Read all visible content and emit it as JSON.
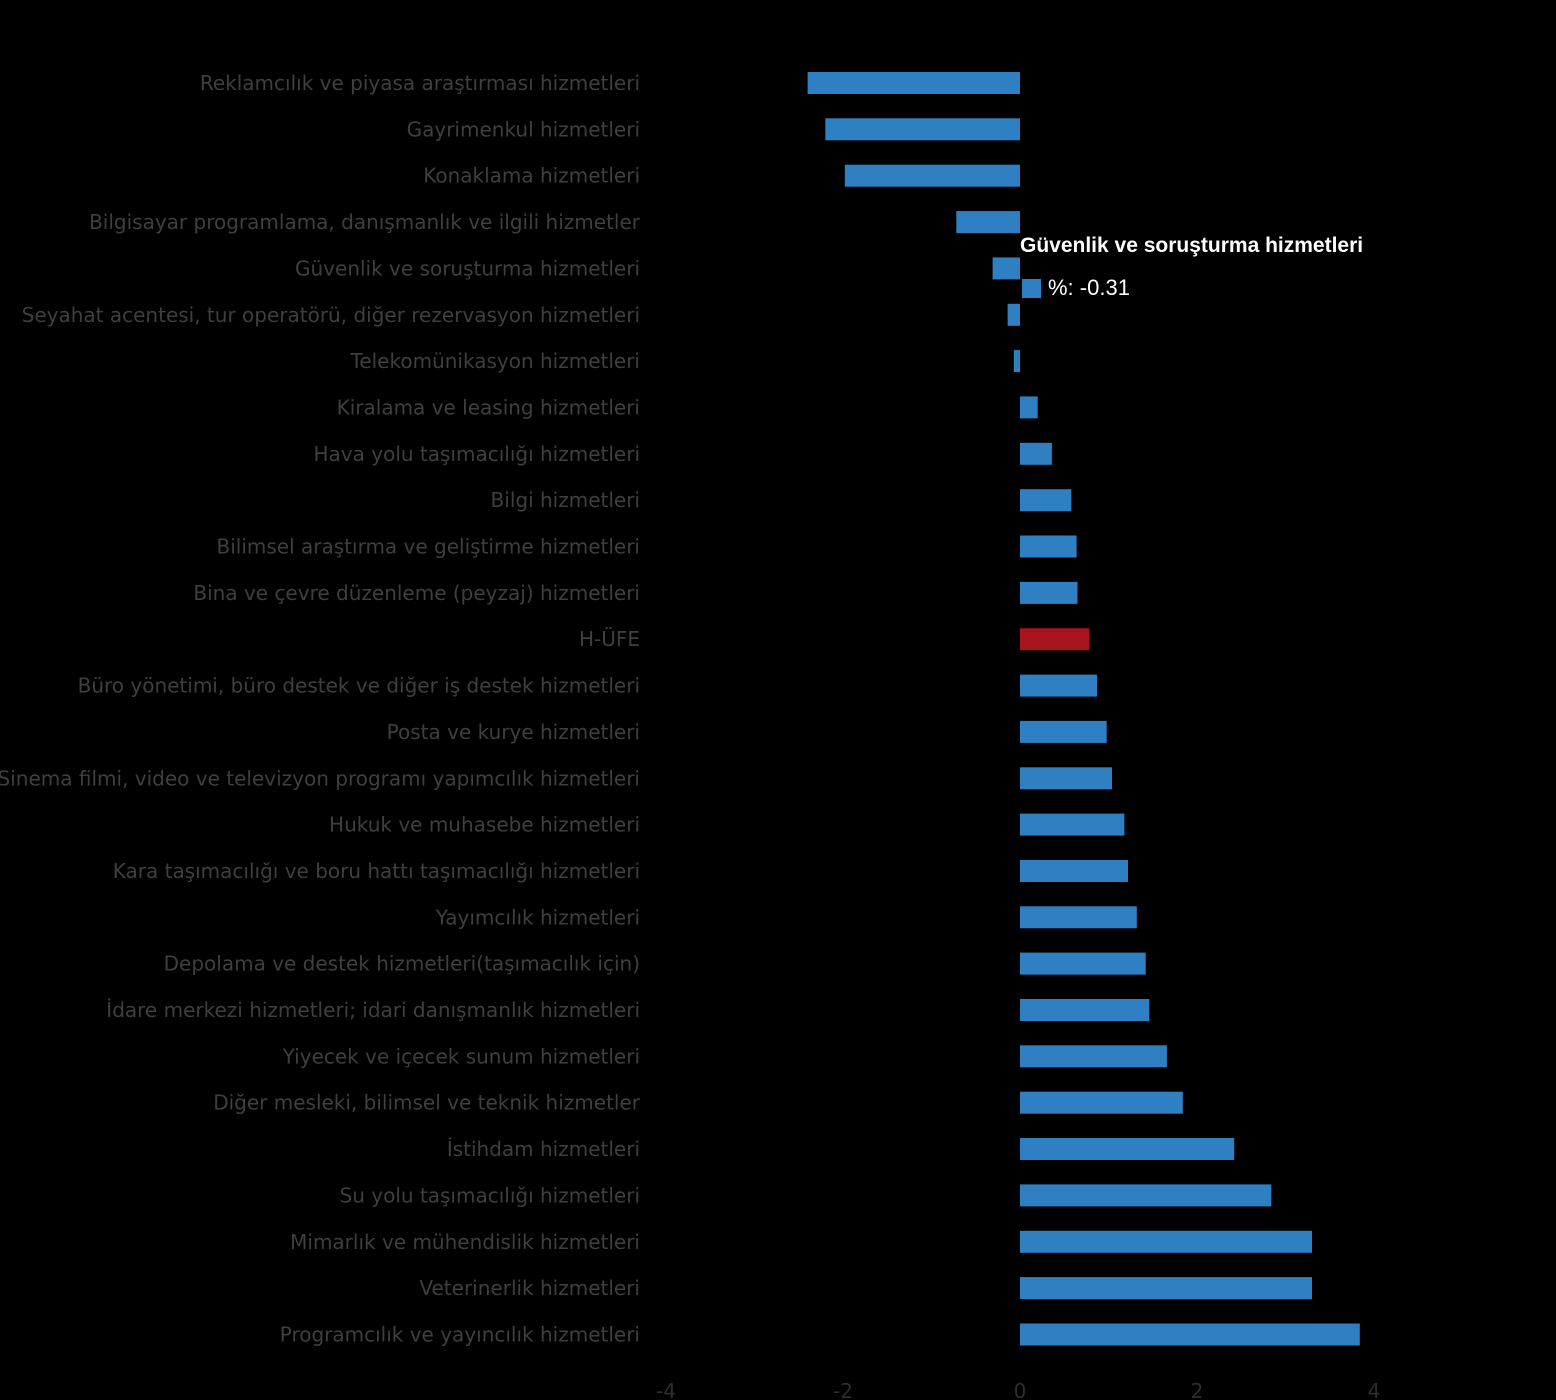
{
  "colors": {
    "background": "#000000",
    "bar": "#2f7fc3",
    "highlight": "#a8141b",
    "label": "#3f3f3f",
    "tick": "#2e2e2e",
    "tooltip_text": "#ffffff"
  },
  "tooltip": {
    "title": "Güvenlik ve soruşturma hizmetleri",
    "value_text": "%: -0.31"
  },
  "chart_data": {
    "type": "bar",
    "orientation": "horizontal",
    "categories": [
      "Reklamcılık ve piyasa araştırması hizmetleri",
      "Gayrimenkul hizmetleri",
      "Konaklama hizmetleri",
      "Bilgisayar programlama, danışmanlık ve ilgili hizmetler",
      "Güvenlik ve soruşturma hizmetleri",
      "Seyahat acentesi, tur operatörü, diğer rezervasyon hizmetleri",
      "Telekomünikasyon hizmetleri",
      "Kiralama ve leasing hizmetleri",
      "Hava yolu taşımacılığı hizmetleri",
      "Bilgi hizmetleri",
      "Bilimsel araştırma ve geliştirme hizmetleri",
      "Bina ve çevre düzenleme (peyzaj) hizmetleri",
      "H-ÜFE",
      "Büro yönetimi, büro destek ve diğer iş destek hizmetleri",
      "Posta ve kurye hizmetleri",
      "Sinema filmi, video ve televizyon programı yapımcılık hizmetleri",
      "Hukuk ve muhasebe hizmetleri",
      "Kara taşımacılığı ve boru hattı taşımacılığı hizmetleri",
      "Yayımcılık hizmetleri",
      "Depolama ve destek hizmetleri(taşımacılık için)",
      "İdare merkezi hizmetleri; idari danışmanlık hizmetleri",
      "Yiyecek ve içecek sunum hizmetleri",
      "Diğer mesleki, bilimsel ve teknik hizmetler",
      "İstihdam hizmetleri",
      "Su yolu taşımacılığı hizmetleri",
      "Mimarlık ve mühendislik hizmetleri",
      "Veterinerlik hizmetleri",
      "Programcılık ve yayıncılık hizmetleri"
    ],
    "values": [
      -2.4,
      -2.2,
      -1.98,
      -0.72,
      -0.31,
      -0.14,
      -0.07,
      0.2,
      0.36,
      0.58,
      0.64,
      0.65,
      0.78,
      0.87,
      0.98,
      1.04,
      1.18,
      1.22,
      1.32,
      1.42,
      1.46,
      1.66,
      1.84,
      2.42,
      2.84,
      3.3,
      3.3,
      3.84
    ],
    "highlight_category": "H-ÜFE",
    "xlim": [
      -4,
      6
    ],
    "x_ticks": [
      -4,
      -2,
      0,
      2,
      4
    ],
    "x_tick_labels": [
      "-4",
      "-2",
      "0",
      "2",
      "4"
    ],
    "title": "",
    "xlabel": "",
    "ylabel": "",
    "grid": false,
    "legend": "none"
  }
}
